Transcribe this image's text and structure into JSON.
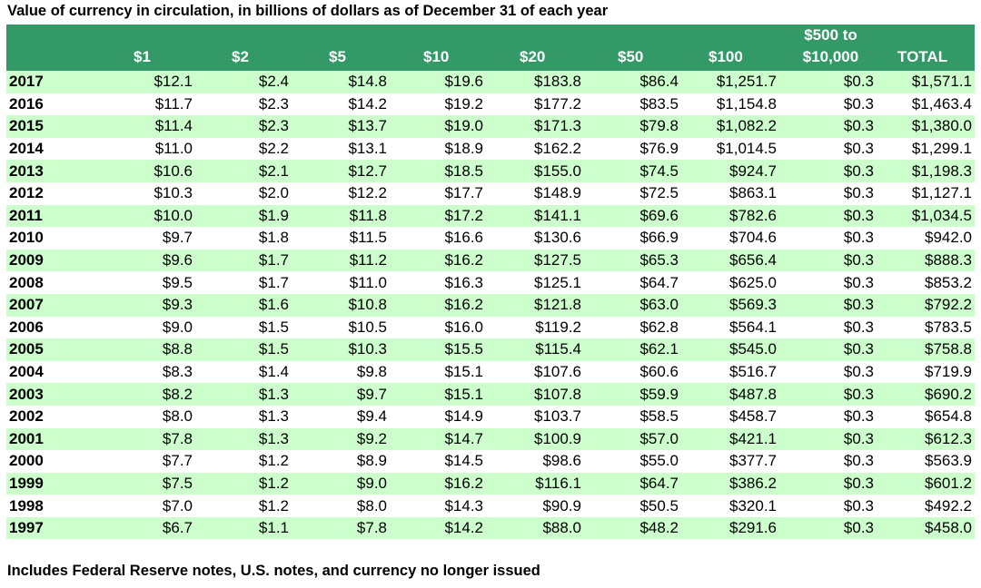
{
  "title": "Value of currency in circulation, in billions of dollars as of December 31 of each year",
  "footnote": "Includes Federal Reserve notes, U.S. notes, and currency no longer issued",
  "colors": {
    "header_bg": "#339966",
    "stripe": "#ccffcc"
  },
  "chart_data": {
    "type": "table",
    "columns": [
      "",
      "$1",
      "$2",
      "$5",
      "$10",
      "$20",
      "$50",
      "$100",
      "$500 to $10,000",
      "TOTAL"
    ],
    "rows": [
      [
        "2017",
        "$12.1",
        "$2.4",
        "$14.8",
        "$19.6",
        "$183.8",
        "$86.4",
        "$1,251.7",
        "$0.3",
        "$1,571.1"
      ],
      [
        "2016",
        "$11.7",
        "$2.3",
        "$14.2",
        "$19.2",
        "$177.2",
        "$83.5",
        "$1,154.8",
        "$0.3",
        "$1,463.4"
      ],
      [
        "2015",
        "$11.4",
        "$2.3",
        "$13.7",
        "$19.0",
        "$171.3",
        "$79.8",
        "$1,082.2",
        "$0.3",
        "$1,380.0"
      ],
      [
        "2014",
        "$11.0",
        "$2.2",
        "$13.1",
        "$18.9",
        "$162.2",
        "$76.9",
        "$1,014.5",
        "$0.3",
        "$1,299.1"
      ],
      [
        "2013",
        "$10.6",
        "$2.1",
        "$12.7",
        "$18.5",
        "$155.0",
        "$74.5",
        "$924.7",
        "$0.3",
        "$1,198.3"
      ],
      [
        "2012",
        "$10.3",
        "$2.0",
        "$12.2",
        "$17.7",
        "$148.9",
        "$72.5",
        "$863.1",
        "$0.3",
        "$1,127.1"
      ],
      [
        "2011",
        "$10.0",
        "$1.9",
        "$11.8",
        "$17.2",
        "$141.1",
        "$69.6",
        "$782.6",
        "$0.3",
        "$1,034.5"
      ],
      [
        "2010",
        "$9.7",
        "$1.8",
        "$11.5",
        "$16.6",
        "$130.6",
        "$66.9",
        "$704.6",
        "$0.3",
        "$942.0"
      ],
      [
        "2009",
        "$9.6",
        "$1.7",
        "$11.2",
        "$16.2",
        "$127.5",
        "$65.3",
        "$656.4",
        "$0.3",
        "$888.3"
      ],
      [
        "2008",
        "$9.5",
        "$1.7",
        "$11.0",
        "$16.3",
        "$125.1",
        "$64.7",
        "$625.0",
        "$0.3",
        "$853.2"
      ],
      [
        "2007",
        "$9.3",
        "$1.6",
        "$10.8",
        "$16.2",
        "$121.8",
        "$63.0",
        "$569.3",
        "$0.3",
        "$792.2"
      ],
      [
        "2006",
        "$9.0",
        "$1.5",
        "$10.5",
        "$16.0",
        "$119.2",
        "$62.8",
        "$564.1",
        "$0.3",
        "$783.5"
      ],
      [
        "2005",
        "$8.8",
        "$1.5",
        "$10.3",
        "$15.5",
        "$115.4",
        "$62.1",
        "$545.0",
        "$0.3",
        "$758.8"
      ],
      [
        "2004",
        "$8.3",
        "$1.4",
        "$9.8",
        "$15.1",
        "$107.6",
        "$60.6",
        "$516.7",
        "$0.3",
        "$719.9"
      ],
      [
        "2003",
        "$8.2",
        "$1.3",
        "$9.7",
        "$15.1",
        "$107.8",
        "$59.9",
        "$487.8",
        "$0.3",
        "$690.2"
      ],
      [
        "2002",
        "$8.0",
        "$1.3",
        "$9.4",
        "$14.9",
        "$103.7",
        "$58.5",
        "$458.7",
        "$0.3",
        "$654.8"
      ],
      [
        "2001",
        "$7.8",
        "$1.3",
        "$9.2",
        "$14.7",
        "$100.9",
        "$57.0",
        "$421.1",
        "$0.3",
        "$612.3"
      ],
      [
        "2000",
        "$7.7",
        "$1.2",
        "$8.9",
        "$14.5",
        "$98.6",
        "$55.0",
        "$377.7",
        "$0.3",
        "$563.9"
      ],
      [
        "1999",
        "$7.5",
        "$1.2",
        "$9.0",
        "$16.2",
        "$116.1",
        "$64.7",
        "$386.2",
        "$0.3",
        "$601.2"
      ],
      [
        "1998",
        "$7.0",
        "$1.2",
        "$8.0",
        "$14.3",
        "$90.9",
        "$50.5",
        "$320.1",
        "$0.3",
        "$492.2"
      ],
      [
        "1997",
        "$6.7",
        "$1.1",
        "$7.8",
        "$14.2",
        "$88.0",
        "$48.2",
        "$291.6",
        "$0.3",
        "$458.0"
      ]
    ]
  }
}
